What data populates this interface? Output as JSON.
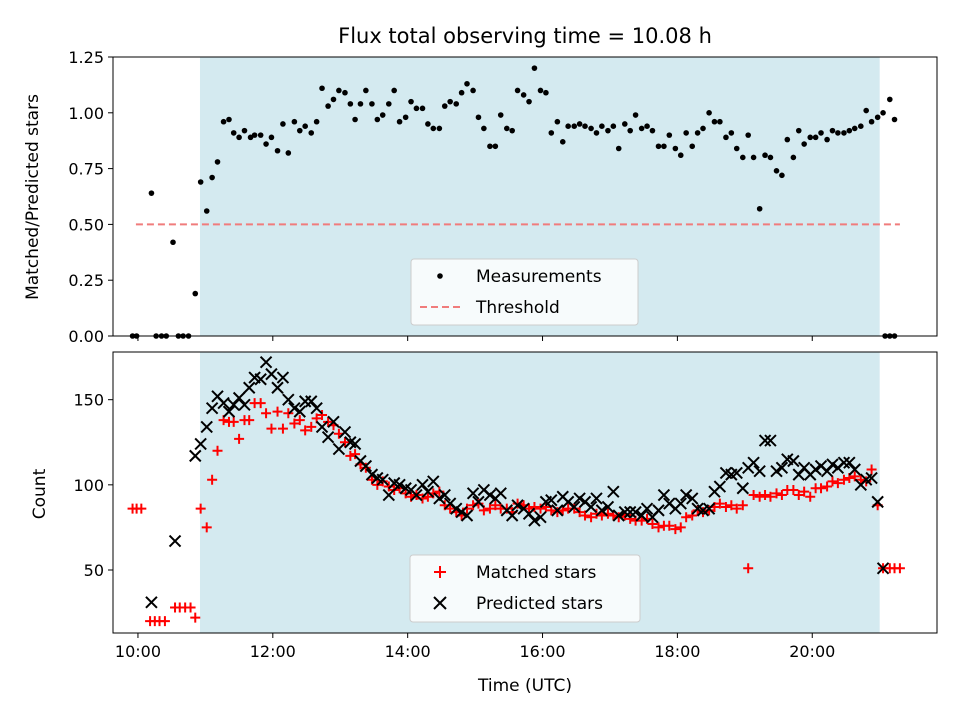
{
  "title": "Flux total observing time = 10.08 h",
  "x_tick_labels": [
    "10:00",
    "12:00",
    "14:00",
    "16:00",
    "18:00",
    "20:00"
  ],
  "colors": {
    "shade": "#d4eaf0",
    "threshold": "#f07c7c",
    "measurement": "#000000",
    "matched": "#ff0000",
    "predicted": "#000000"
  },
  "chart_data": [
    {
      "type": "scatter",
      "title": "Flux total observing time = 10.08 h",
      "xlabel": "",
      "ylabel": "Matched/Predicted stars",
      "xlim": [
        9.63,
        21.85
      ],
      "ylim": [
        0,
        1.25
      ],
      "y_ticks": [
        0,
        0.25,
        0.5,
        0.75,
        1.0,
        1.25
      ],
      "y_tick_labels": [
        "0.00",
        "0.25",
        "0.50",
        "0.75",
        "1.00",
        "1.25"
      ],
      "grid": false,
      "legend_position": "bottom-center",
      "shaded_interval": [
        10.92,
        21.0
      ],
      "threshold": {
        "name": "Threshold",
        "y": 0.5,
        "x_range": [
          9.97,
          21.3
        ]
      },
      "series": [
        {
          "name": "Measurements",
          "x": [
            9.92,
            9.98,
            10.2,
            10.27,
            10.35,
            10.42,
            10.52,
            10.6,
            10.67,
            10.75,
            10.85,
            10.93,
            11.02,
            11.1,
            11.18,
            11.27,
            11.35,
            11.42,
            11.5,
            11.58,
            11.67,
            11.73,
            11.82,
            11.9,
            11.98,
            12.07,
            12.15,
            12.23,
            12.32,
            12.4,
            12.48,
            12.57,
            12.65,
            12.73,
            12.82,
            12.9,
            12.98,
            13.07,
            13.15,
            13.22,
            13.3,
            13.38,
            13.47,
            13.55,
            13.63,
            13.72,
            13.8,
            13.88,
            13.97,
            14.05,
            14.13,
            14.22,
            14.3,
            14.38,
            14.47,
            14.55,
            14.63,
            14.72,
            14.8,
            14.88,
            14.97,
            15.05,
            15.13,
            15.22,
            15.3,
            15.38,
            15.47,
            15.55,
            15.63,
            15.72,
            15.8,
            15.88,
            15.97,
            16.05,
            16.13,
            16.22,
            16.3,
            16.38,
            16.47,
            16.55,
            16.63,
            16.72,
            16.8,
            16.88,
            16.97,
            17.05,
            17.13,
            17.22,
            17.3,
            17.38,
            17.47,
            17.55,
            17.63,
            17.72,
            17.8,
            17.88,
            17.97,
            18.05,
            18.13,
            18.22,
            18.3,
            18.38,
            18.47,
            18.55,
            18.63,
            18.72,
            18.8,
            18.88,
            18.97,
            19.05,
            19.13,
            19.22,
            19.3,
            19.38,
            19.47,
            19.55,
            19.63,
            19.72,
            19.8,
            19.88,
            19.97,
            20.05,
            20.13,
            20.22,
            20.3,
            20.38,
            20.47,
            20.55,
            20.63,
            20.72,
            20.8,
            20.88,
            20.97,
            21.05,
            21.15,
            21.22
          ],
          "values": [
            0.0,
            0.0,
            0.64,
            0.0,
            0.0,
            0.0,
            0.42,
            0.0,
            0.0,
            0.0,
            0.19,
            0.69,
            0.56,
            0.71,
            0.78,
            0.96,
            0.97,
            0.91,
            0.89,
            0.92,
            0.89,
            0.9,
            0.9,
            0.86,
            0.89,
            0.83,
            0.95,
            0.82,
            0.96,
            0.92,
            0.94,
            0.91,
            0.96,
            1.11,
            1.03,
            1.06,
            1.1,
            1.09,
            1.04,
            0.97,
            1.04,
            1.1,
            1.04,
            0.97,
            0.99,
            1.04,
            1.1,
            0.96,
            0.98,
            1.05,
            1.02,
            1.02,
            0.95,
            0.93,
            0.93,
            1.03,
            1.05,
            1.04,
            1.09,
            1.13,
            1.1,
            0.98,
            0.93,
            0.85,
            0.85,
            0.99,
            0.93,
            0.92,
            1.1,
            1.08,
            1.05,
            1.2,
            1.1,
            1.09,
            0.91,
            0.96,
            0.87,
            0.94,
            0.94,
            0.95,
            0.94,
            0.93,
            0.91,
            0.94,
            0.92,
            0.94,
            0.84,
            0.95,
            0.92,
            0.99,
            0.93,
            0.94,
            0.92,
            0.85,
            0.85,
            0.9,
            0.84,
            0.81,
            0.91,
            0.85,
            0.91,
            0.93,
            1.0,
            0.96,
            0.96,
            0.89,
            0.91,
            0.84,
            0.8,
            0.9,
            0.8,
            0.57,
            0.81,
            0.8,
            0.74,
            0.72,
            0.88,
            0.8,
            0.92,
            0.86,
            0.89,
            0.89,
            0.91,
            0.88,
            0.92,
            0.91,
            0.91,
            0.92,
            0.93,
            0.94,
            1.01,
            0.96,
            0.98,
            1.0,
            1.06,
            0.97
          ]
        }
      ],
      "zero_run_end": {
        "x": [
          21.08,
          21.15,
          21.22
        ],
        "values": [
          0.0,
          0.0,
          0.0
        ]
      }
    },
    {
      "type": "scatter",
      "title": "",
      "xlabel": "Time (UTC)",
      "ylabel": "Count",
      "xlim": [
        9.63,
        21.85
      ],
      "ylim": [
        13,
        178
      ],
      "y_ticks": [
        50,
        100,
        150
      ],
      "y_tick_labels": [
        "50",
        "100",
        "150"
      ],
      "grid": false,
      "legend_position": "bottom-center",
      "shaded_interval": [
        10.92,
        21.0
      ],
      "series": [
        {
          "name": "Matched stars",
          "marker": "+",
          "x": [
            9.92,
            9.98,
            10.05,
            10.18,
            10.25,
            10.32,
            10.4,
            10.55,
            10.62,
            10.7,
            10.78,
            10.85,
            10.93,
            11.02,
            11.1,
            11.18,
            11.27,
            11.35,
            11.42,
            11.5,
            11.58,
            11.65,
            11.73,
            11.82,
            11.9,
            11.98,
            12.07,
            12.15,
            12.23,
            12.32,
            12.4,
            12.48,
            12.57,
            12.65,
            12.73,
            12.82,
            12.9,
            12.98,
            13.07,
            13.15,
            13.22,
            13.3,
            13.38,
            13.47,
            13.55,
            13.63,
            13.72,
            13.8,
            13.88,
            13.97,
            14.05,
            14.13,
            14.22,
            14.3,
            14.38,
            14.47,
            14.55,
            14.63,
            14.72,
            14.8,
            14.88,
            14.97,
            15.05,
            15.13,
            15.22,
            15.3,
            15.38,
            15.47,
            15.55,
            15.63,
            15.72,
            15.8,
            15.88,
            15.97,
            16.05,
            16.13,
            16.22,
            16.3,
            16.38,
            16.47,
            16.55,
            16.63,
            16.72,
            16.8,
            16.88,
            16.97,
            17.05,
            17.13,
            17.22,
            17.3,
            17.38,
            17.47,
            17.55,
            17.63,
            17.72,
            17.8,
            17.88,
            17.97,
            18.05,
            18.13,
            18.22,
            18.3,
            18.38,
            18.47,
            18.55,
            18.63,
            18.72,
            18.8,
            18.88,
            18.97,
            19.05,
            19.13,
            19.22,
            19.3,
            19.38,
            19.47,
            19.55,
            19.63,
            19.72,
            19.8,
            19.88,
            19.97,
            20.05,
            20.13,
            20.22,
            20.3,
            20.38,
            20.47,
            20.55,
            20.63,
            20.72,
            20.8,
            20.88,
            20.97,
            21.05,
            21.15,
            21.22,
            21.3
          ],
          "values": [
            86,
            86,
            86,
            20,
            20,
            20,
            20,
            28,
            28,
            28,
            28,
            22,
            86,
            75,
            103,
            120,
            138,
            137,
            137,
            127,
            138,
            138,
            148,
            148,
            142,
            133,
            143,
            133,
            142,
            136,
            138,
            132,
            134,
            139,
            141,
            137,
            135,
            130,
            125,
            117,
            118,
            112,
            110,
            103,
            100,
            102,
            99,
            97,
            98,
            95,
            93,
            94,
            92,
            93,
            95,
            96,
            88,
            86,
            84,
            82,
            86,
            88,
            89,
            85,
            86,
            88,
            86,
            86,
            84,
            89,
            88,
            86,
            87,
            86,
            87,
            85,
            84,
            85,
            86,
            86,
            84,
            82,
            81,
            83,
            82,
            83,
            82,
            81,
            82,
            80,
            79,
            79,
            80,
            77,
            75,
            76,
            76,
            74,
            75,
            81,
            82,
            85,
            84,
            85,
            87,
            89,
            87,
            88,
            86,
            88,
            51,
            94,
            93,
            94,
            93,
            95,
            94,
            97,
            97,
            94,
            96,
            93,
            98,
            98,
            99,
            102,
            101,
            103,
            104,
            105,
            103,
            102,
            109,
            88,
            51,
            51,
            51,
            51
          ]
        },
        {
          "name": "Predicted stars",
          "marker": "x",
          "x": [
            10.2,
            10.55,
            10.85,
            10.93,
            11.02,
            11.1,
            11.18,
            11.27,
            11.35,
            11.42,
            11.5,
            11.58,
            11.65,
            11.73,
            11.82,
            11.9,
            11.98,
            12.07,
            12.15,
            12.23,
            12.32,
            12.4,
            12.48,
            12.57,
            12.65,
            12.73,
            12.82,
            12.9,
            12.98,
            13.07,
            13.15,
            13.22,
            13.3,
            13.38,
            13.47,
            13.55,
            13.63,
            13.72,
            13.8,
            13.88,
            13.97,
            14.05,
            14.13,
            14.22,
            14.3,
            14.38,
            14.47,
            14.55,
            14.63,
            14.72,
            14.8,
            14.88,
            14.97,
            15.05,
            15.13,
            15.22,
            15.3,
            15.38,
            15.47,
            15.55,
            15.63,
            15.72,
            15.8,
            15.88,
            15.97,
            16.05,
            16.13,
            16.22,
            16.3,
            16.38,
            16.47,
            16.55,
            16.63,
            16.72,
            16.8,
            16.88,
            16.97,
            17.05,
            17.13,
            17.22,
            17.3,
            17.38,
            17.47,
            17.55,
            17.63,
            17.72,
            17.8,
            17.88,
            17.97,
            18.05,
            18.13,
            18.22,
            18.3,
            18.38,
            18.47,
            18.55,
            18.63,
            18.72,
            18.8,
            18.88,
            18.97,
            19.05,
            19.13,
            19.22,
            19.3,
            19.38,
            19.47,
            19.55,
            19.63,
            19.72,
            19.8,
            19.88,
            19.97,
            20.05,
            20.13,
            20.22,
            20.3,
            20.38,
            20.47,
            20.55,
            20.63,
            20.72,
            20.8,
            20.88,
            20.97,
            21.05
          ],
          "values": [
            31,
            67,
            117,
            124,
            134,
            145,
            152,
            148,
            143,
            147,
            151,
            147,
            157,
            163,
            162,
            172,
            165,
            157,
            163,
            150,
            145,
            143,
            149,
            149,
            145,
            134,
            128,
            137,
            121,
            131,
            125,
            124,
            114,
            111,
            106,
            104,
            103,
            94,
            101,
            100,
            98,
            97,
            94,
            100,
            96,
            102,
            92,
            94,
            89,
            86,
            84,
            82,
            95,
            90,
            97,
            94,
            92,
            95,
            85,
            82,
            88,
            86,
            83,
            79,
            81,
            90,
            91,
            85,
            93,
            90,
            87,
            92,
            90,
            87,
            92,
            85,
            87,
            96,
            82,
            84,
            84,
            84,
            82,
            86,
            81,
            85,
            94,
            89,
            86,
            89,
            94,
            92,
            86,
            85,
            86,
            96,
            99,
            107,
            106,
            107,
            98,
            110,
            113,
            108,
            126,
            126,
            108,
            110,
            115,
            114,
            106,
            110,
            106,
            109,
            111,
            108,
            112,
            110,
            113,
            113,
            109,
            100,
            103,
            104,
            90,
            51
          ]
        }
      ]
    }
  ]
}
